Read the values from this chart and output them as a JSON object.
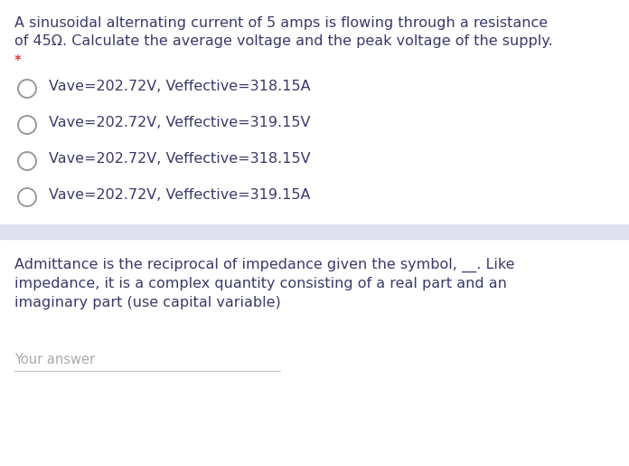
{
  "background_color": "#ffffff",
  "question1_line1": "A sinusoidal alternating current of 5 amps is flowing through a resistance",
  "question1_line2": "of 45Ω. Calculate the average voltage and the peak voltage of the supply.",
  "asterisk": "*",
  "options": [
    "Vave=202.72V, Veffective=318.15A",
    "Vave=202.72V, Veffective=319.15V",
    "Vave=202.72V, Veffective=318.15V",
    "Vave=202.72V, Veffective=319.15A"
  ],
  "question2_line1": "Admittance is the reciprocal of impedance given the symbol, __. Like",
  "question2_line2": "impedance, it is a complex quantity consisting of a real part and an",
  "question2_line3": "imaginary part (use capital variable)",
  "your_answer": "Your answer",
  "separator_color": "#e0e0f0",
  "background_color2": "#ffffff",
  "option_text_color": "#3a3a6a",
  "question_text_color": "#3a3a6a",
  "asterisk_color": "#cc0000",
  "your_answer_color": "#aaaaaa",
  "underline_color": "#cccccc",
  "circle_edge_color": "#999999",
  "q1_fontsize": 11.5,
  "option_fontsize": 11.5,
  "q2_fontsize": 11.5,
  "your_answer_fontsize": 10.5
}
